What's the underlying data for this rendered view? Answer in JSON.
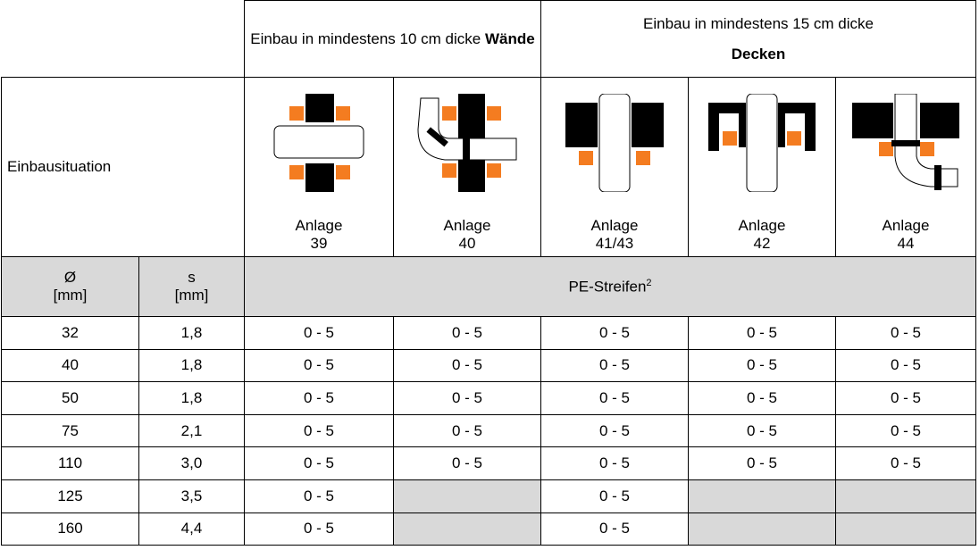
{
  "header": {
    "walls": {
      "text": "Einbau in mindestens 10 cm dicke",
      "bold": "Wände"
    },
    "ceilings": {
      "text": "Einbau in mindestens 15 cm dicke",
      "bold": "Decken"
    },
    "situation": "Einbausituation",
    "installations": [
      {
        "label": "Anlage",
        "number": "39"
      },
      {
        "label": "Anlage",
        "number": "40"
      },
      {
        "label": "Anlage",
        "number": "41/43"
      },
      {
        "label": "Anlage",
        "number": "42"
      },
      {
        "label": "Anlage",
        "number": "44"
      }
    ],
    "diameter": {
      "symbol": "Ø",
      "unit": "[mm]"
    },
    "thickness": {
      "symbol": "s",
      "unit": "[mm]"
    },
    "material": {
      "text": "PE-Streifen",
      "sup": "2"
    }
  },
  "table": {
    "rows": [
      [
        "32",
        "1,8",
        "0 - 5",
        "0 - 5",
        "0 - 5",
        "0 - 5",
        "0 - 5"
      ],
      [
        "40",
        "1,8",
        "0 - 5",
        "0 - 5",
        "0 - 5",
        "0 - 5",
        "0 - 5"
      ],
      [
        "50",
        "1,8",
        "0 - 5",
        "0 - 5",
        "0 - 5",
        "0 - 5",
        "0 - 5"
      ],
      [
        "75",
        "2,1",
        "0 - 5",
        "0 - 5",
        "0 - 5",
        "0 - 5",
        "0 - 5"
      ],
      [
        "110",
        "3,0",
        "0 - 5",
        "0 - 5",
        "0 - 5",
        "0 - 5",
        "0 - 5"
      ],
      [
        "125",
        "3,5",
        "0 - 5",
        null,
        "0 - 5",
        null,
        null
      ],
      [
        "160",
        "4,4",
        "0 - 5",
        null,
        "0 - 5",
        null,
        null
      ]
    ]
  }
}
